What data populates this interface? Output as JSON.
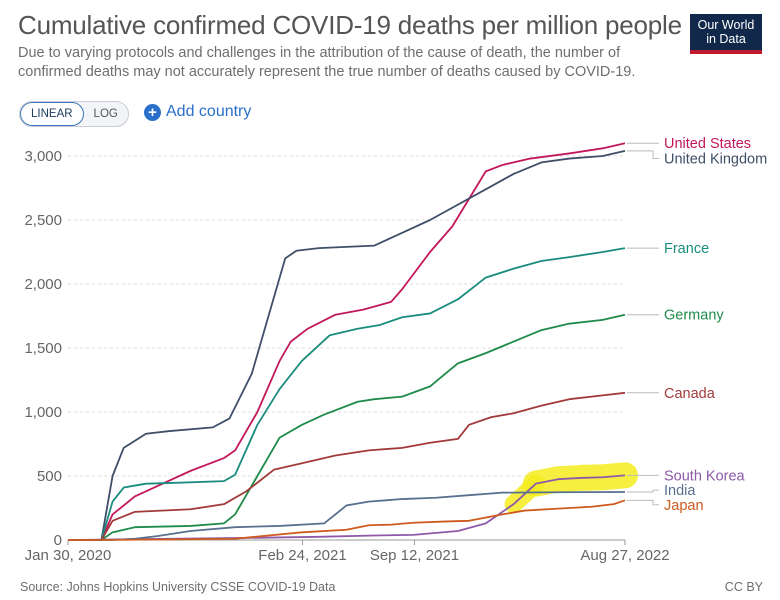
{
  "header": {
    "title": "Cumulative confirmed COVID-19 deaths per million people",
    "subtitle": "Due to varying protocols and challenges in the attribution of the cause of death, the number of confirmed deaths may not accurately represent the true number of deaths caused by COVID-19.",
    "logo_line1": "Our World",
    "logo_line2": "in Data"
  },
  "controls": {
    "linear_label": "LINEAR",
    "log_label": "LOG",
    "add_country_label": "Add country",
    "active_scale": "LINEAR"
  },
  "footer": {
    "source": "Source: Johns Hopkins University CSSE COVID-19 Data",
    "license": "CC BY"
  },
  "colors": {
    "brand": "#12284a",
    "accent": "#c0182f",
    "link": "#2a6fc9",
    "highlight": "#f5ec1f"
  },
  "chart_data": {
    "type": "line",
    "title": "Cumulative confirmed COVID-19 deaths per million people",
    "ylim": [
      0,
      3000
    ],
    "y_ticks": [
      0,
      500,
      1000,
      1500,
      2000,
      2500,
      3000
    ],
    "y_tick_labels": [
      "0",
      "500",
      "1,000",
      "1,500",
      "2,000",
      "2,500",
      "3,000"
    ],
    "x_ticks": [
      {
        "label": "Jan 30, 2020",
        "t": 0.0
      },
      {
        "label": "Feb 24, 2021",
        "t": 0.421
      },
      {
        "label": "Sep 12, 2021",
        "t": 0.622
      },
      {
        "label": "Aug 27, 2022",
        "t": 1.0
      }
    ],
    "grid": true,
    "legend": "right end labels",
    "annotations": [
      "yellow highlighter mark over South Korea line, mid-2022"
    ],
    "series": [
      {
        "name": "United States",
        "color": "#c2185b",
        "x": [
          0,
          0.06,
          0.08,
          0.12,
          0.16,
          0.22,
          0.28,
          0.3,
          0.34,
          0.38,
          0.4,
          0.43,
          0.48,
          0.53,
          0.58,
          0.6,
          0.65,
          0.69,
          0.75,
          0.78,
          0.8,
          0.83,
          0.9,
          0.96,
          1.0
        ],
        "values": [
          0,
          0,
          200,
          340,
          420,
          540,
          640,
          700,
          1000,
          1400,
          1550,
          1650,
          1760,
          1800,
          1860,
          1960,
          2250,
          2450,
          2880,
          2930,
          2950,
          2980,
          3020,
          3060,
          3100
        ]
      },
      {
        "name": "United Kingdom",
        "color": "#3f4e69",
        "x": [
          0,
          0.06,
          0.08,
          0.1,
          0.14,
          0.18,
          0.26,
          0.29,
          0.33,
          0.37,
          0.39,
          0.41,
          0.45,
          0.55,
          0.6,
          0.65,
          0.75,
          0.8,
          0.85,
          0.9,
          0.96,
          1.0
        ],
        "values": [
          0,
          0,
          500,
          720,
          830,
          850,
          880,
          950,
          1300,
          1900,
          2200,
          2260,
          2280,
          2300,
          2400,
          2500,
          2740,
          2860,
          2950,
          2980,
          3000,
          3040
        ]
      },
      {
        "name": "France",
        "color": "#1a8c7e",
        "x": [
          0,
          0.06,
          0.08,
          0.1,
          0.14,
          0.18,
          0.28,
          0.3,
          0.34,
          0.38,
          0.42,
          0.47,
          0.52,
          0.56,
          0.6,
          0.65,
          0.7,
          0.75,
          0.8,
          0.85,
          0.9,
          0.96,
          1.0
        ],
        "values": [
          0,
          0,
          300,
          410,
          440,
          445,
          460,
          510,
          900,
          1180,
          1400,
          1600,
          1650,
          1680,
          1740,
          1770,
          1880,
          2050,
          2120,
          2180,
          2210,
          2250,
          2280
        ]
      },
      {
        "name": "Germany",
        "color": "#1e8b4a",
        "x": [
          0,
          0.06,
          0.08,
          0.12,
          0.22,
          0.28,
          0.3,
          0.34,
          0.38,
          0.42,
          0.46,
          0.52,
          0.55,
          0.6,
          0.65,
          0.7,
          0.75,
          0.8,
          0.85,
          0.9,
          0.96,
          1.0
        ],
        "values": [
          0,
          0,
          60,
          100,
          110,
          130,
          200,
          500,
          800,
          900,
          980,
          1080,
          1100,
          1120,
          1200,
          1380,
          1460,
          1550,
          1640,
          1690,
          1720,
          1760
        ]
      },
      {
        "name": "Canada",
        "color": "#a23a3a",
        "x": [
          0,
          0.06,
          0.08,
          0.12,
          0.22,
          0.28,
          0.32,
          0.37,
          0.42,
          0.48,
          0.54,
          0.6,
          0.65,
          0.7,
          0.72,
          0.76,
          0.8,
          0.85,
          0.9,
          0.96,
          1.0
        ],
        "values": [
          0,
          0,
          150,
          220,
          240,
          280,
          380,
          550,
          600,
          660,
          700,
          720,
          760,
          790,
          900,
          960,
          990,
          1050,
          1100,
          1130,
          1150
        ]
      },
      {
        "name": "South Korea",
        "color": "#8e5aa8",
        "x": [
          0,
          0.1,
          0.3,
          0.45,
          0.55,
          0.62,
          0.7,
          0.75,
          0.8,
          0.84,
          0.88,
          0.92,
          0.96,
          1.0
        ],
        "values": [
          0,
          5,
          15,
          25,
          35,
          40,
          70,
          130,
          280,
          440,
          475,
          485,
          490,
          505
        ]
      },
      {
        "name": "India",
        "color": "#58718f",
        "x": [
          0,
          0.08,
          0.12,
          0.16,
          0.22,
          0.3,
          0.38,
          0.46,
          0.48,
          0.5,
          0.54,
          0.6,
          0.66,
          0.72,
          0.78,
          0.85,
          0.92,
          1.0
        ],
        "values": [
          0,
          0,
          10,
          30,
          70,
          100,
          110,
          130,
          200,
          270,
          300,
          320,
          330,
          350,
          370,
          372,
          374,
          375
        ]
      },
      {
        "name": "Japan",
        "color": "#cf5a1e",
        "x": [
          0,
          0.1,
          0.2,
          0.3,
          0.36,
          0.42,
          0.5,
          0.54,
          0.58,
          0.62,
          0.68,
          0.72,
          0.78,
          0.82,
          0.88,
          0.94,
          0.98,
          1.0
        ],
        "values": [
          0,
          2,
          5,
          10,
          35,
          60,
          80,
          115,
          120,
          135,
          145,
          150,
          200,
          230,
          245,
          260,
          280,
          310
        ]
      }
    ],
    "series_label_y": [
      3100,
      2980,
      2280,
      1760,
      1150,
      505,
      390,
      275
    ]
  }
}
